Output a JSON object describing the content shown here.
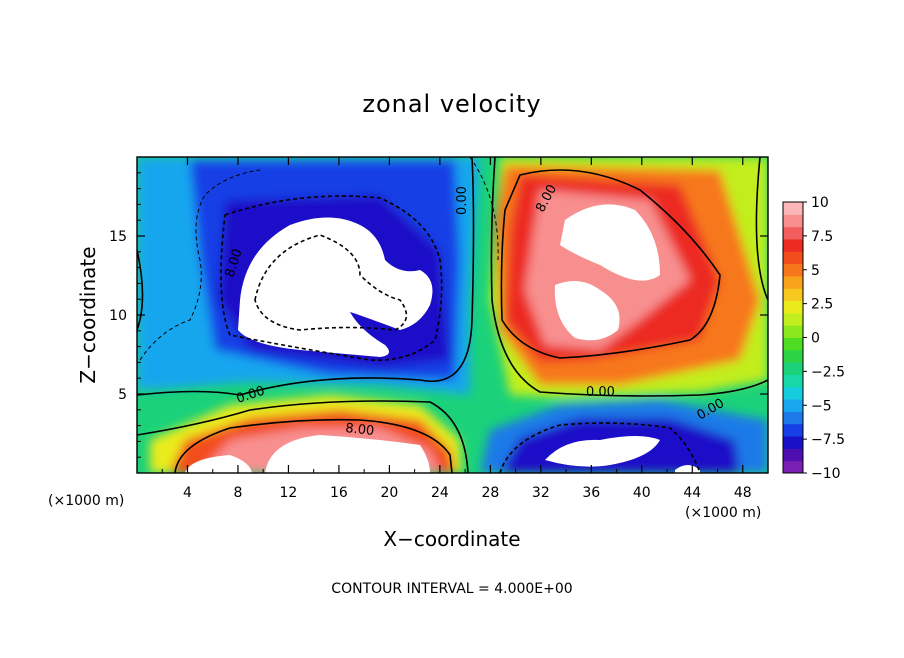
{
  "chart_data": {
    "type": "heatmap",
    "title": "zonal velocity",
    "xlabel": "X−coordinate",
    "ylabel": "Z−coordinate",
    "x_unit": "(×1000 m)",
    "z_unit": "(×1000 m)",
    "x_ticks": [
      4,
      8,
      12,
      16,
      20,
      24,
      28,
      32,
      36,
      40,
      44,
      48
    ],
    "y_ticks": [
      5,
      10,
      15
    ],
    "xlim": [
      0,
      50
    ],
    "ylim": [
      0,
      20
    ],
    "colorbar": {
      "ticks": [
        "10",
        "7.5",
        "5",
        "2.5",
        "0",
        "−2.5",
        "−5",
        "−7.5",
        "−10"
      ],
      "range": [
        -10,
        10
      ],
      "colors": [
        "#7a1fb4",
        "#4f0fb0",
        "#1a10c8",
        "#1640e6",
        "#1e7ae8",
        "#19a6ee",
        "#16ccdf",
        "#18d8a8",
        "#1bd27a",
        "#2cd445",
        "#4ddd22",
        "#8be81c",
        "#c2ee1e",
        "#eaeb1c",
        "#f7c81d",
        "#f9a21b",
        "#f7781c",
        "#f24e1c",
        "#ec2b22",
        "#f25d5d",
        "#f88f8f",
        "#fbb7b7"
      ]
    },
    "contour_labels": [
      "8.00",
      "0.00",
      "8.00",
      "0.00",
      "0.00",
      "8.00",
      "0.00"
    ],
    "contour_interval_text": "CONTOUR INTERVAL = 4.000E+00"
  }
}
